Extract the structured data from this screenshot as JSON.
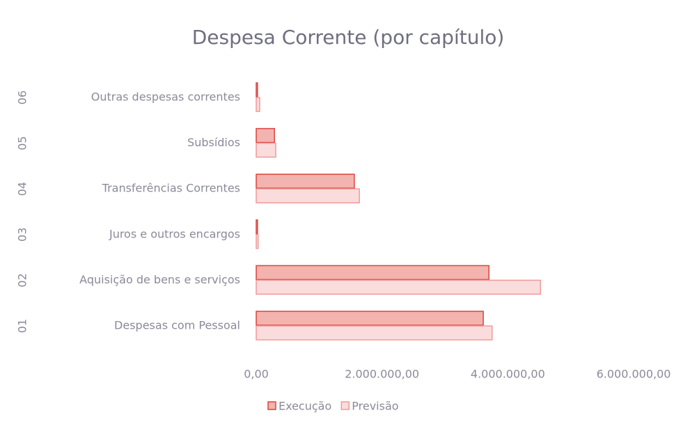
{
  "chart_data": {
    "type": "bar",
    "orientation": "horizontal",
    "title": "Despesa Corrente (por capítulo)",
    "category_codes": [
      "01",
      "02",
      "03",
      "04",
      "05",
      "06"
    ],
    "categories": [
      "Despesas com Pessoal",
      "Aquisição de bens e serviços",
      "Juros e outros encargos",
      "Transferências Correntes",
      "Subsídios",
      "Outras despesas correntes"
    ],
    "series": [
      {
        "name": "Execução",
        "color": "#f3b3ae",
        "stroke": "#d9443f",
        "values": [
          3610000,
          3700000,
          20000,
          1560000,
          290000,
          20000
        ]
      },
      {
        "name": "Previsão",
        "color": "#fbdcdc",
        "stroke": "#f09a9a",
        "values": [
          3750000,
          4520000,
          30000,
          1640000,
          310000,
          55000
        ]
      }
    ],
    "xlim": [
      0,
      6000000
    ],
    "xticks": [
      {
        "value": 0,
        "label": "0,00"
      },
      {
        "value": 2000000,
        "label": "2.000.000,00"
      },
      {
        "value": 4000000,
        "label": "4.000.000,00"
      },
      {
        "value": 6000000,
        "label": "6.000.000,00"
      }
    ],
    "grid": false,
    "legend": "bottom"
  }
}
